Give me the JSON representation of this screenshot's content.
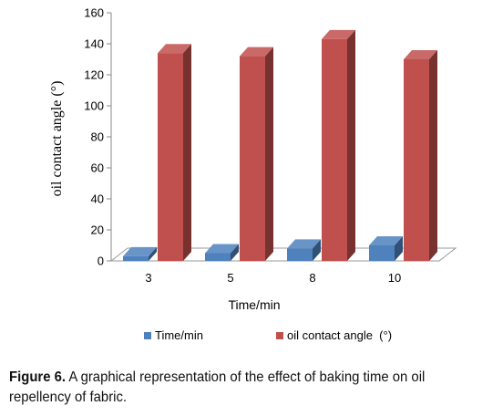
{
  "chart_data": {
    "type": "bar",
    "categories": [
      "3",
      "5",
      "8",
      "10"
    ],
    "series": [
      {
        "name": "Time/min",
        "values": [
          3,
          5,
          8,
          10
        ],
        "color": "#4F81BD"
      },
      {
        "name": "oil contact angle  (°)",
        "values": [
          134,
          132,
          143,
          130
        ],
        "color": "#C0504D"
      }
    ],
    "yticks": [
      "0",
      "20",
      "40",
      "60",
      "80",
      "100",
      "120",
      "140",
      "160"
    ],
    "ylim": [
      0,
      160
    ],
    "ylabel": "oil contact angle  (°)",
    "xlabel": "Time/min",
    "legend_position": "bottom",
    "three_d": true
  },
  "caption": {
    "label": "Figure 6.",
    "text": " A graphical representation of the effect of baking time on oil repellency of fabric."
  }
}
